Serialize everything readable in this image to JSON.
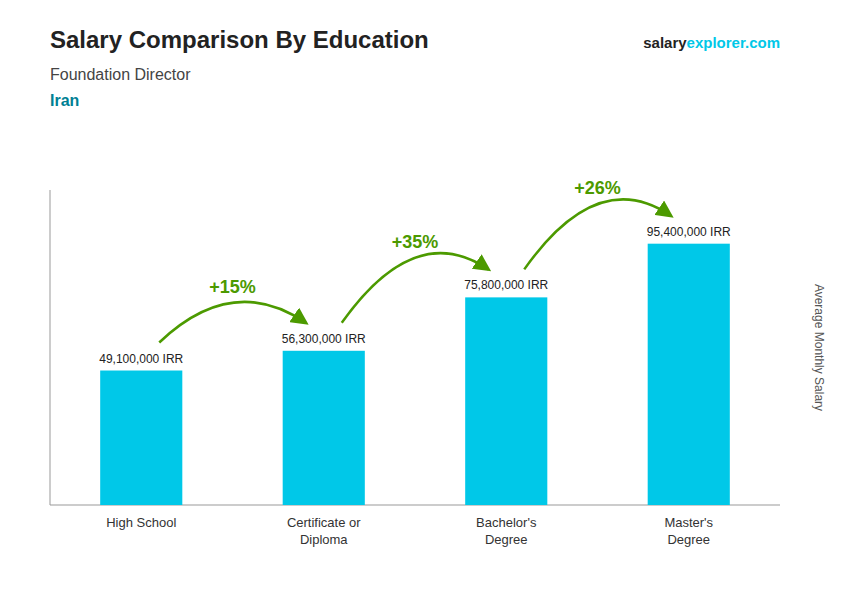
{
  "chart_data": {
    "type": "bar",
    "title": "Salary Comparison By Education",
    "subtitle": "Foundation Director",
    "ylabel": "Average Monthly Salary",
    "categories": [
      "High School",
      "Certificate or\nDiploma",
      "Bachelor's\nDegree",
      "Master's\nDegree"
    ],
    "values": [
      49100000,
      56300000,
      75800000,
      95400000
    ],
    "value_labels": [
      "49,100,000 IRR",
      "56,300,000 IRR",
      "75,800,000 IRR",
      "95,400,000 IRR"
    ],
    "data_labels": true,
    "color": "#00c8e8",
    "ylim": [
      0,
      115000000
    ],
    "tick_labels": "x",
    "annotations": {
      "country": "Iran",
      "source": [
        "salary",
        "explorer",
        ".com"
      ],
      "changes": [
        "+15%",
        "+35%",
        "+26%"
      ]
    }
  }
}
